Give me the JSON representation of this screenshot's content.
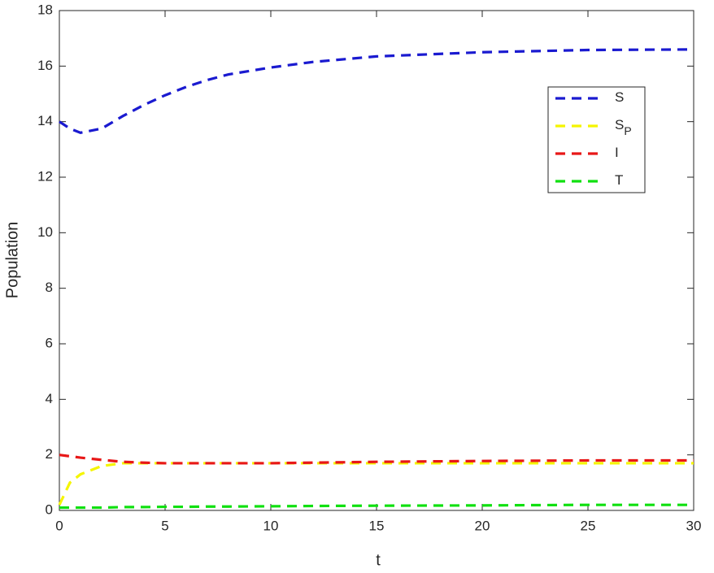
{
  "chart_data": {
    "type": "line",
    "x_label": "t",
    "y_label": "Population",
    "x": [
      0,
      0.5,
      1,
      2,
      3,
      4,
      5,
      6,
      7,
      8,
      10,
      12,
      15,
      20,
      25,
      30
    ],
    "series": [
      {
        "name": "S",
        "color": "#1a1ad0",
        "values": [
          14,
          13.75,
          13.6,
          13.75,
          14.2,
          14.6,
          14.95,
          15.25,
          15.5,
          15.7,
          15.95,
          16.15,
          16.35,
          16.5,
          16.58,
          16.6
        ]
      },
      {
        "name": "S",
        "name_subscript": "P",
        "color": "#f5f500",
        "values": [
          0.2,
          1.0,
          1.3,
          1.6,
          1.7,
          1.7,
          1.7,
          1.7,
          1.7,
          1.7,
          1.7,
          1.7,
          1.7,
          1.7,
          1.7,
          1.7
        ]
      },
      {
        "name": "I",
        "color": "#e81818",
        "values": [
          2.0,
          1.95,
          1.9,
          1.82,
          1.75,
          1.72,
          1.7,
          1.7,
          1.7,
          1.7,
          1.7,
          1.72,
          1.75,
          1.78,
          1.8,
          1.8
        ]
      },
      {
        "name": "T",
        "color": "#10e010",
        "values": [
          0.1,
          0.1,
          0.1,
          0.1,
          0.12,
          0.12,
          0.13,
          0.13,
          0.14,
          0.14,
          0.15,
          0.16,
          0.17,
          0.18,
          0.2,
          0.2
        ]
      }
    ],
    "xlim": [
      0,
      30
    ],
    "xticks": [
      0,
      5,
      10,
      15,
      20,
      25,
      30
    ],
    "ylim": [
      0,
      18
    ],
    "yticks": [
      0,
      2,
      4,
      6,
      8,
      10,
      12,
      14,
      16,
      18
    ],
    "grid": false,
    "legend": "upper right"
  }
}
